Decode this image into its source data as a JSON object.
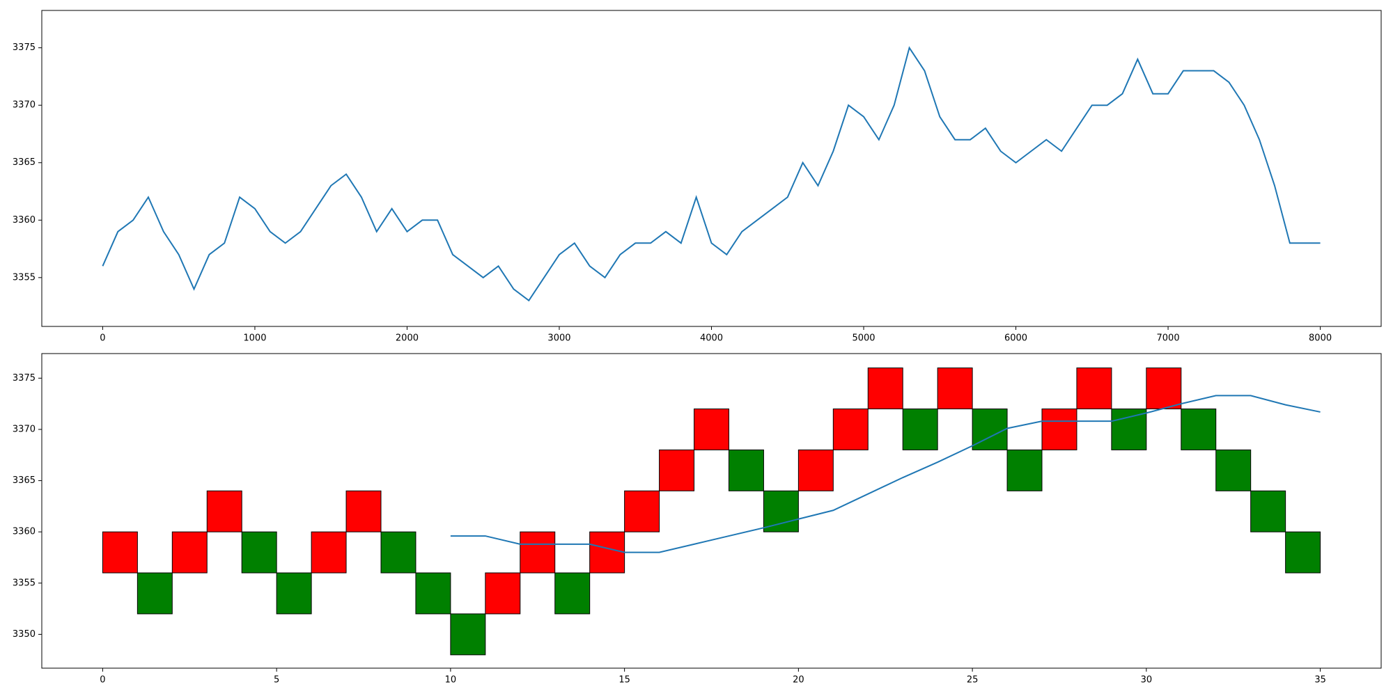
{
  "chart_data": [
    {
      "type": "line",
      "series": [
        {
          "color": "#1f77b4",
          "x": [
            0,
            100,
            200,
            300,
            400,
            500,
            600,
            700,
            800,
            900,
            1000,
            1100,
            1200,
            1300,
            1400,
            1500,
            1600,
            1700,
            1800,
            1900,
            2000,
            2100,
            2200,
            2300,
            2400,
            2500,
            2600,
            2700,
            2800,
            2900,
            3000,
            3100,
            3200,
            3300,
            3400,
            3500,
            3600,
            3700,
            3800,
            3900,
            4000,
            4100,
            4200,
            4300,
            4400,
            4500,
            4600,
            4700,
            4800,
            4900,
            5000,
            5100,
            5200,
            5300,
            5400,
            5500,
            5600,
            5700,
            5800,
            5900,
            6000,
            6100,
            6200,
            6300,
            6400,
            6500,
            6600,
            6700,
            6800,
            6900,
            7000,
            7100,
            7200,
            7300,
            7400,
            7500,
            7600,
            7700,
            7800,
            7900,
            8000
          ],
          "values": [
            3356,
            3359,
            3360,
            3362,
            3359,
            3357,
            3354,
            3357,
            3358,
            3362,
            3361,
            3359,
            3358,
            3359,
            3361,
            3363,
            3364,
            3362,
            3359,
            3361,
            3359,
            3360,
            3360,
            3357,
            3356,
            3355,
            3356,
            3354,
            3353,
            3355,
            3357,
            3358,
            3356,
            3355,
            3357,
            3358,
            3358,
            3359,
            3358,
            3362,
            3358,
            3357,
            3359,
            3360,
            3361,
            3362,
            3365,
            3363,
            3366,
            3370,
            3369,
            3367,
            3370,
            3375,
            3373,
            3369,
            3367,
            3367,
            3368,
            3366,
            3365,
            3366,
            3367,
            3366,
            3368,
            3370,
            3370,
            3371,
            3374,
            3371,
            3371,
            3373,
            3373,
            3373,
            3372,
            3370,
            3367,
            3363,
            3358,
            3358,
            3358
          ]
        }
      ],
      "xlim": [
        -400,
        8400
      ],
      "xticks": [
        0,
        1000,
        2000,
        3000,
        4000,
        5000,
        6000,
        7000,
        8000
      ],
      "ylim": [
        3350.75,
        3378.25
      ],
      "yticks": [
        3355,
        3360,
        3365,
        3370,
        3375
      ]
    },
    {
      "type": "renko",
      "bricks": {
        "x": [
          0,
          1,
          2,
          3,
          4,
          5,
          6,
          7,
          8,
          9,
          10,
          11,
          12,
          13,
          14,
          15,
          16,
          17,
          18,
          19,
          20,
          21,
          22,
          23,
          24,
          25,
          26,
          27,
          28,
          29,
          30,
          31,
          32,
          33,
          34
        ],
        "open": [
          3356,
          3356,
          3356,
          3360,
          3360,
          3356,
          3356,
          3360,
          3360,
          3356,
          3352,
          3352,
          3356,
          3356,
          3356,
          3360,
          3364,
          3368,
          3368,
          3364,
          3364,
          3368,
          3372,
          3372,
          3372,
          3372,
          3368,
          3368,
          3372,
          3372,
          3372,
          3372,
          3368,
          3364,
          3360
        ],
        "close": [
          3360,
          3352,
          3360,
          3364,
          3356,
          3352,
          3360,
          3364,
          3356,
          3352,
          3348,
          3356,
          3360,
          3352,
          3360,
          3364,
          3368,
          3372,
          3364,
          3360,
          3368,
          3372,
          3376,
          3368,
          3376,
          3368,
          3364,
          3372,
          3376,
          3368,
          3376,
          3368,
          3364,
          3360,
          3356
        ],
        "up_color": "#ff0000",
        "down_color": "#008000"
      },
      "series": [
        {
          "color": "#1f77b4",
          "x": [
            10,
            11,
            12,
            13,
            14,
            15,
            16,
            17,
            18,
            19,
            20,
            21,
            22,
            23,
            24,
            25,
            26,
            27,
            28,
            29,
            30,
            31,
            32,
            33,
            34,
            35
          ],
          "values": [
            3359.6,
            3359.6,
            3358.8,
            3358.8,
            3358.8,
            3358,
            3358,
            3358.8,
            3359.6,
            3360.4,
            3361.25,
            3362.1,
            3363.7,
            3365.3,
            3366.8,
            3368.4,
            3370.1,
            3370.8,
            3370.8,
            3370.8,
            3371.6,
            3372.5,
            3373.3,
            3373.3,
            3372.4,
            3371.7
          ]
        }
      ],
      "xlim": [
        -1.75,
        36.75
      ],
      "xticks": [
        0,
        5,
        10,
        15,
        20,
        25,
        30,
        35
      ],
      "ylim": [
        3346.7,
        3377.4
      ],
      "yticks": [
        3350,
        3355,
        3360,
        3365,
        3370,
        3375
      ]
    }
  ]
}
